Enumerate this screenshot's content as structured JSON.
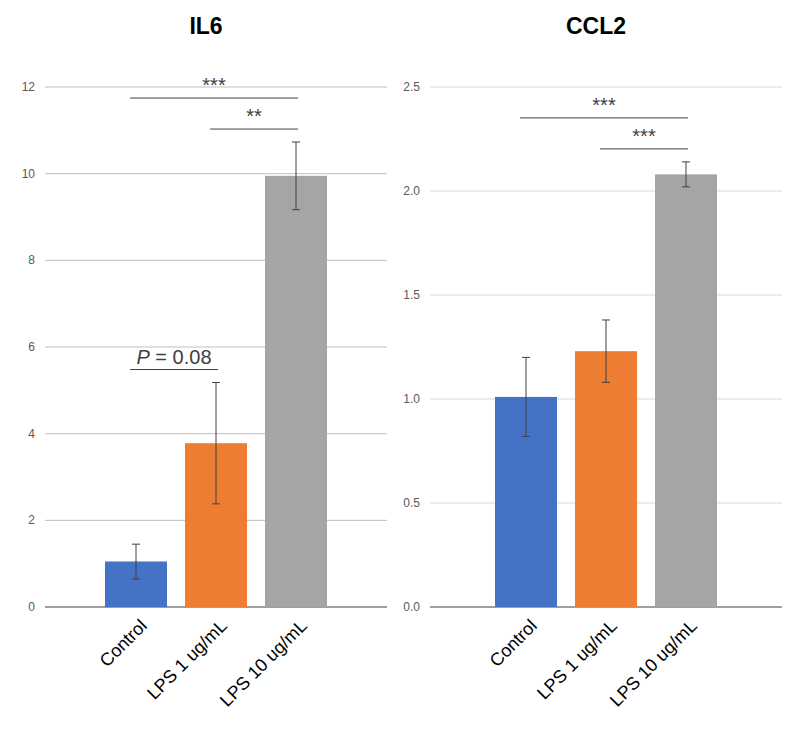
{
  "chart_data": [
    {
      "type": "bar",
      "title": "IL6",
      "categories": [
        "Control",
        "LPS 1 ug/mL",
        "LPS 10 ug/mL"
      ],
      "values": [
        1.05,
        3.78,
        9.95
      ],
      "errors": [
        0.4,
        1.4,
        0.78
      ],
      "colors": [
        "#4472c4",
        "#ed7d31",
        "#a5a5a5"
      ],
      "ylim": [
        0,
        12
      ],
      "yticks": [
        0,
        2,
        4,
        6,
        8,
        10,
        12
      ],
      "grid": true,
      "annotations": [
        {
          "from": 0,
          "to": 1,
          "label": "P = 0.08"
        },
        {
          "from": 1,
          "to": 2,
          "label": "**"
        },
        {
          "from": 0,
          "to": 2,
          "label": "***"
        }
      ]
    },
    {
      "type": "bar",
      "title": "CCL2",
      "categories": [
        "Control",
        "LPS 1 ug/mL",
        "LPS 10 ug/mL"
      ],
      "values": [
        1.01,
        1.23,
        2.08
      ],
      "errors": [
        0.19,
        0.15,
        0.06
      ],
      "colors": [
        "#4472c4",
        "#ed7d31",
        "#a5a5a5"
      ],
      "ylim": [
        0,
        2.5
      ],
      "yticks": [
        {
          "value": 0,
          "label": "0.0"
        },
        {
          "value": 0.5,
          "label": "0.5"
        },
        {
          "value": 1,
          "label": "1.0"
        },
        {
          "value": 1.5,
          "label": "1.5"
        },
        {
          "value": 2,
          "label": "2.0"
        },
        {
          "value": 2.5,
          "label": "2.5"
        }
      ],
      "grid": true,
      "annotations": [
        {
          "from": 1,
          "to": 2,
          "label": "***"
        },
        {
          "from": 0,
          "to": 2,
          "label": "***"
        }
      ]
    }
  ]
}
